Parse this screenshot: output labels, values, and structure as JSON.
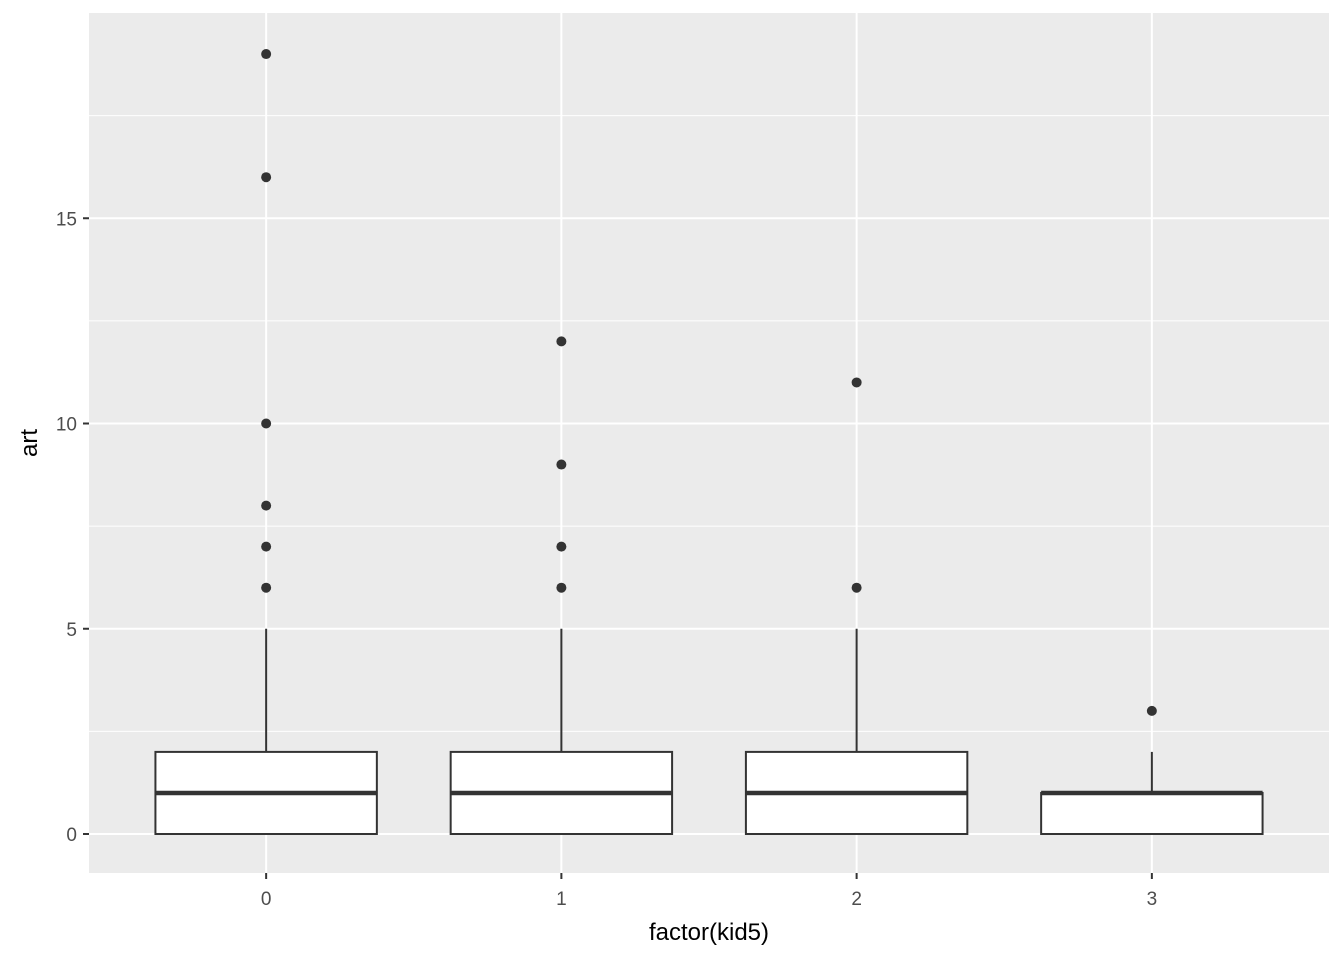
{
  "chart_data": {
    "type": "boxplot",
    "title": "",
    "xlabel": "factor(kid5)",
    "ylabel": "art",
    "categories": [
      "0",
      "1",
      "2",
      "3"
    ],
    "ylim": [
      -0.95,
      20.0
    ],
    "yticks": [
      0,
      5,
      10,
      15
    ],
    "ytick_labels": [
      "0",
      "5",
      "10",
      "15"
    ],
    "grid": true,
    "panel_background": "#ebebeb",
    "grid_color": "#ffffff",
    "box_fill": "#ffffff",
    "line_color": "#333333",
    "boxes": [
      {
        "category": "0",
        "lower_whisker": 0,
        "q1": 0,
        "median": 1,
        "q3": 2,
        "upper_whisker": 5,
        "outliers": [
          6,
          7,
          8,
          10,
          16,
          19
        ]
      },
      {
        "category": "1",
        "lower_whisker": 0,
        "q1": 0,
        "median": 1,
        "q3": 2,
        "upper_whisker": 5,
        "outliers": [
          6,
          7,
          9,
          12
        ]
      },
      {
        "category": "2",
        "lower_whisker": 0,
        "q1": 0,
        "median": 1,
        "q3": 2,
        "upper_whisker": 5,
        "outliers": [
          6,
          11
        ]
      },
      {
        "category": "3",
        "lower_whisker": 0,
        "q1": 0,
        "median": 1,
        "q3": 1,
        "upper_whisker": 2,
        "outliers": [
          3
        ]
      }
    ]
  }
}
